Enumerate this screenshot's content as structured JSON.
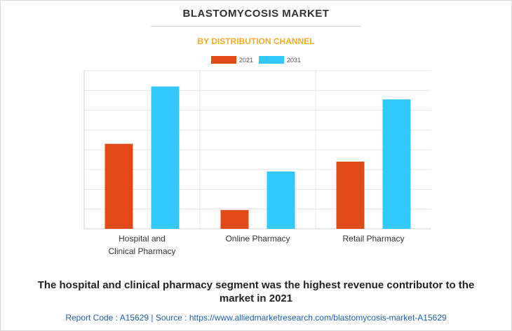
{
  "header": {
    "title": "BLASTOMYCOSIS MARKET",
    "subtitle": "BY DISTRIBUTION CHANNEL"
  },
  "colors": {
    "series_2021": "#e04a17",
    "series_2031": "#33c8fd",
    "subtitle": "#f0ad2a",
    "footer": "#1f5fa8"
  },
  "chart_data": {
    "type": "bar",
    "categories": [
      [
        "Hospital and",
        "Clinical Pharmacy"
      ],
      [
        "Online Pharmacy"
      ],
      [
        "Retail Pharmacy"
      ]
    ],
    "series": [
      {
        "name": "2021",
        "values": [
          43,
          9.5,
          34
        ]
      },
      {
        "name": "2031",
        "values": [
          72,
          29,
          65.5
        ]
      }
    ],
    "ylim": [
      0,
      80
    ],
    "grid": true,
    "legend_position": "top-center",
    "xlabel": "",
    "ylabel": ""
  },
  "caption": {
    "line1": "The hospital and clinical pharmacy segment was the highest revenue contributor to the",
    "line2": "market in 2021"
  },
  "footer": {
    "text": "Report Code : A15629  |  Source : https://www.alliedmarketresearch.com/blastomycosis-market-A15629"
  }
}
